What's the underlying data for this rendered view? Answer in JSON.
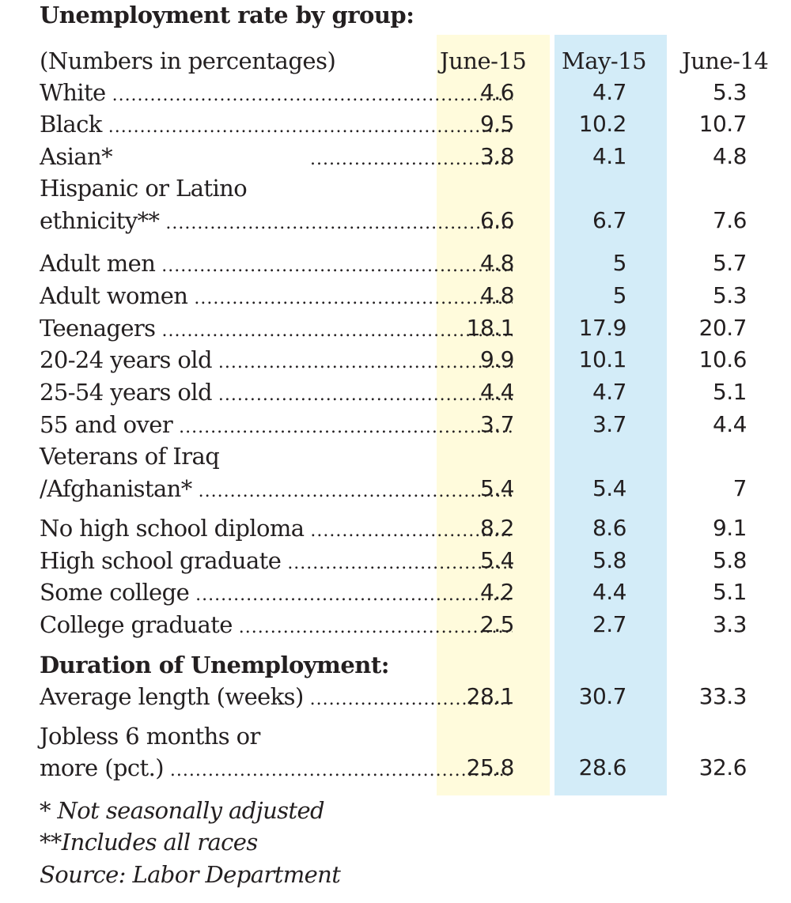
{
  "title": "Unemployment rate by group:",
  "header": {
    "units_note": "(Numbers in percentages)",
    "columns": [
      "June-15",
      "May-15",
      "June-14"
    ]
  },
  "column_colors": {
    "june15_highlight": "#fffbdc",
    "may15_highlight": "#d3ecf8"
  },
  "rows": [
    {
      "label": "White",
      "values": [
        "4.6",
        "4.7",
        "5.3"
      ]
    },
    {
      "label": "Black",
      "values": [
        "9.5",
        "10.2",
        "10.7"
      ]
    },
    {
      "label": "Asian*",
      "values": [
        "3.8",
        "4.1",
        "4.8"
      ]
    },
    {
      "label": "Hispanic or Latino",
      "label_line2": "ethnicity**",
      "values": [
        "6.6",
        "6.7",
        "7.6"
      ]
    },
    {
      "label": "Adult men",
      "values": [
        "4.8",
        "5",
        "5.7"
      ]
    },
    {
      "label": "Adult women",
      "values": [
        "4.8",
        "5",
        "5.3"
      ]
    },
    {
      "label": "Teenagers",
      "values": [
        "18.1",
        "17.9",
        "20.7"
      ]
    },
    {
      "label": "20-24 years old",
      "values": [
        "9.9",
        "10.1",
        "10.6"
      ]
    },
    {
      "label": "25-54 years old",
      "values": [
        "4.4",
        "4.7",
        "5.1"
      ]
    },
    {
      "label": "55 and over",
      "values": [
        "3.7",
        "3.7",
        "4.4"
      ]
    },
    {
      "label": "Veterans of Iraq",
      "label_line2": "/Afghanistan*",
      "values": [
        "5.4",
        "5.4",
        "7"
      ]
    },
    {
      "label": "No high school diploma",
      "values": [
        "8.2",
        "8.6",
        "9.1"
      ]
    },
    {
      "label": "High school graduate",
      "values": [
        "5.4",
        "5.8",
        "5.8"
      ]
    },
    {
      "label": "Some college",
      "values": [
        "4.2",
        "4.4",
        "5.1"
      ]
    },
    {
      "label": "College graduate",
      "values": [
        "2.5",
        "2.7",
        "3.3"
      ]
    }
  ],
  "duration": {
    "heading": "Duration of Unemployment:",
    "rows": [
      {
        "label": "Average length (weeks)",
        "values": [
          "28.1",
          "30.7",
          "33.3"
        ]
      },
      {
        "label": "Jobless 6 months or",
        "label_line2": "more (pct.)",
        "values": [
          "25.8",
          "28.6",
          "32.6"
        ]
      }
    ]
  },
  "footnotes": [
    "* Not seasonally adjusted",
    "**Includes all races",
    "Source: Labor Department"
  ]
}
